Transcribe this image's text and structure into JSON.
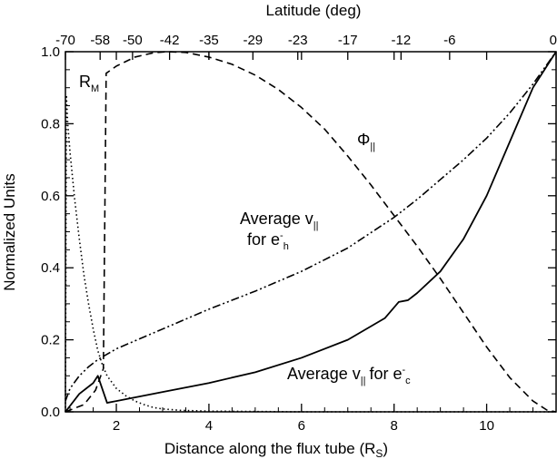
{
  "chart_data": {
    "type": "line",
    "xlabel": "Distance along the flux tube (R",
    "xlabel_sub": "S",
    "xlabel_end": ")",
    "x2label": "Latitude (deg)",
    "ylabel": "Normalized Units",
    "xlim": [
      0.9,
      11.5
    ],
    "ylim": [
      0.0,
      1.0
    ],
    "x_ticks": [
      {
        "value": 2,
        "label": "2"
      },
      {
        "value": 4,
        "label": "4"
      },
      {
        "value": 6,
        "label": "6"
      },
      {
        "value": 8,
        "label": "8"
      },
      {
        "value": 10,
        "label": "10"
      }
    ],
    "y_ticks": [
      {
        "value": 0.0,
        "label": "0.0"
      },
      {
        "value": 0.2,
        "label": "0.2"
      },
      {
        "value": 0.4,
        "label": "0.4"
      },
      {
        "value": 0.6,
        "label": "0.6"
      },
      {
        "value": 0.8,
        "label": "0.8"
      },
      {
        "value": 1.0,
        "label": "1.0"
      }
    ],
    "x2_ticks": [
      {
        "value": 0.9,
        "label": "-70"
      },
      {
        "value": 1.65,
        "label": "-58"
      },
      {
        "value": 2.35,
        "label": "-50"
      },
      {
        "value": 3.15,
        "label": "-42"
      },
      {
        "value": 4.0,
        "label": "-35"
      },
      {
        "value": 4.95,
        "label": "-29"
      },
      {
        "value": 5.92,
        "label": "-23"
      },
      {
        "value": 7.0,
        "label": "-17"
      },
      {
        "value": 8.15,
        "label": "-12"
      },
      {
        "value": 9.2,
        "label": "-6"
      },
      {
        "value": 11.5,
        "label": "0"
      }
    ],
    "series": [
      {
        "key": "rm",
        "dash": "dotted",
        "points": [
          [
            0.9,
            0.0
          ],
          [
            0.92,
            0.88
          ],
          [
            0.95,
            0.8
          ],
          [
            1.0,
            0.72
          ],
          [
            1.1,
            0.59
          ],
          [
            1.2,
            0.48
          ],
          [
            1.3,
            0.38
          ],
          [
            1.4,
            0.3
          ],
          [
            1.5,
            0.23
          ],
          [
            1.6,
            0.17
          ],
          [
            1.7,
            0.13
          ],
          [
            1.8,
            0.1
          ],
          [
            2.0,
            0.065
          ],
          [
            2.2,
            0.045
          ],
          [
            2.4,
            0.03
          ],
          [
            2.6,
            0.02
          ],
          [
            2.8,
            0.012
          ],
          [
            3.0,
            0.008
          ],
          [
            3.4,
            0.004
          ],
          [
            4.0,
            0.002
          ],
          [
            6.0,
            0.0
          ],
          [
            11.5,
            0.0
          ]
        ]
      },
      {
        "key": "phi",
        "dash": "dashed",
        "points": [
          [
            0.9,
            0.0
          ],
          [
            1.3,
            0.02
          ],
          [
            1.55,
            0.06
          ],
          [
            1.72,
            0.12
          ],
          [
            1.78,
            0.94
          ],
          [
            2.0,
            0.96
          ],
          [
            2.4,
            0.985
          ],
          [
            2.8,
            0.997
          ],
          [
            3.1,
            1.0
          ],
          [
            3.5,
            0.998
          ],
          [
            4.0,
            0.985
          ],
          [
            4.5,
            0.965
          ],
          [
            5.0,
            0.935
          ],
          [
            5.5,
            0.895
          ],
          [
            6.0,
            0.845
          ],
          [
            6.5,
            0.785
          ],
          [
            7.0,
            0.71
          ],
          [
            7.5,
            0.63
          ],
          [
            8.0,
            0.545
          ],
          [
            8.5,
            0.46
          ],
          [
            9.0,
            0.37
          ],
          [
            9.5,
            0.275
          ],
          [
            10.0,
            0.18
          ],
          [
            10.5,
            0.095
          ],
          [
            11.0,
            0.03
          ],
          [
            11.3,
            0.005
          ],
          [
            11.5,
            0.0
          ]
        ]
      },
      {
        "key": "vh",
        "dash": "dashdotdot",
        "points": [
          [
            0.9,
            0.03
          ],
          [
            1.0,
            0.065
          ],
          [
            1.2,
            0.1
          ],
          [
            1.4,
            0.125
          ],
          [
            1.6,
            0.145
          ],
          [
            2.0,
            0.175
          ],
          [
            3.0,
            0.23
          ],
          [
            4.0,
            0.285
          ],
          [
            5.0,
            0.335
          ],
          [
            6.0,
            0.39
          ],
          [
            7.0,
            0.455
          ],
          [
            8.0,
            0.54
          ],
          [
            8.5,
            0.59
          ],
          [
            9.0,
            0.645
          ],
          [
            9.5,
            0.7
          ],
          [
            10.0,
            0.76
          ],
          [
            10.5,
            0.83
          ],
          [
            11.0,
            0.91
          ],
          [
            11.5,
            1.0
          ]
        ]
      },
      {
        "key": "vc",
        "dash": "solid",
        "points": [
          [
            0.9,
            0.0
          ],
          [
            1.2,
            0.05
          ],
          [
            1.5,
            0.08
          ],
          [
            1.6,
            0.1
          ],
          [
            1.8,
            0.025
          ],
          [
            2.0,
            0.03
          ],
          [
            3.0,
            0.055
          ],
          [
            4.0,
            0.08
          ],
          [
            5.0,
            0.11
          ],
          [
            6.0,
            0.15
          ],
          [
            7.0,
            0.2
          ],
          [
            7.8,
            0.26
          ],
          [
            8.1,
            0.305
          ],
          [
            8.3,
            0.31
          ],
          [
            8.5,
            0.33
          ],
          [
            9.0,
            0.39
          ],
          [
            9.5,
            0.48
          ],
          [
            10.0,
            0.6
          ],
          [
            10.5,
            0.75
          ],
          [
            11.0,
            0.9
          ],
          [
            11.5,
            1.0
          ]
        ]
      }
    ],
    "annotations": {
      "rm": {
        "main": "R",
        "sub": "M"
      },
      "phi": {
        "main": "Φ",
        "sub": "||"
      },
      "vh_line1": {
        "main": "Average v",
        "sub": "||"
      },
      "vh_line2": {
        "main": "for e",
        "sup": "-",
        "sub": "h"
      },
      "vc": {
        "main": "Average v",
        "sub": "||",
        "mid": " for e",
        "sup": "-",
        "sub2": "c"
      }
    }
  }
}
